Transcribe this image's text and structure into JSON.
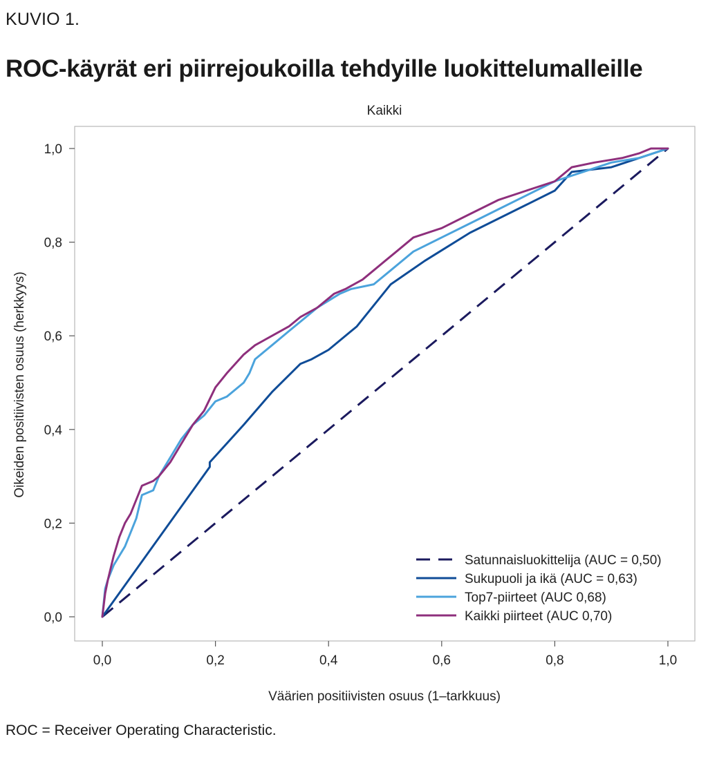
{
  "figure": {
    "label": "KUVIO 1.",
    "title": "ROC-käyrät eri piirrejoukoilla tehdyille luokittelumalleille",
    "footnote": "ROC = Receiver Operating Characteristic."
  },
  "chart_data": {
    "type": "line",
    "title": "Kaikki",
    "xlabel": "Väärien positiivisten osuus (1–tarkkuus)",
    "ylabel": "Oikeiden positiivisten osuus (herkkyys)",
    "xlim": [
      0,
      1
    ],
    "ylim": [
      0,
      1
    ],
    "xticks": [
      "0,0",
      "0,2",
      "0,4",
      "0,6",
      "0,8",
      "1,0"
    ],
    "yticks": [
      "0,0",
      "0,2",
      "0,4",
      "0,6",
      "0,8",
      "1,0"
    ],
    "grid": false,
    "legend_position": "bottom-right",
    "series": [
      {
        "name": "Satunnaisluokittelija (AUC = 0,50)",
        "color": "#1b1a5e",
        "style": "dashed",
        "x": [
          0,
          1
        ],
        "y": [
          0,
          1
        ]
      },
      {
        "name": "Sukupuoli ja ikä (AUC = 0,63)",
        "color": "#0f4c97",
        "style": "solid",
        "x": [
          0,
          0.19,
          0.19,
          0.25,
          0.3,
          0.35,
          0.37,
          0.4,
          0.45,
          0.51,
          0.57,
          0.65,
          0.75,
          0.8,
          0.83,
          0.9,
          1.0
        ],
        "y": [
          0,
          0.32,
          0.33,
          0.41,
          0.48,
          0.54,
          0.55,
          0.57,
          0.62,
          0.71,
          0.76,
          0.82,
          0.88,
          0.91,
          0.95,
          0.96,
          1.0
        ]
      },
      {
        "name": "Top7-piirteet (AUC 0,68)",
        "color": "#4ba3dc",
        "style": "solid",
        "x": [
          0,
          0.005,
          0.01,
          0.02,
          0.03,
          0.04,
          0.05,
          0.06,
          0.07,
          0.09,
          0.1,
          0.12,
          0.14,
          0.16,
          0.18,
          0.2,
          0.22,
          0.25,
          0.26,
          0.27,
          0.3,
          0.33,
          0.36,
          0.38,
          0.42,
          0.44,
          0.48,
          0.51,
          0.55,
          0.6,
          0.65,
          0.7,
          0.75,
          0.8,
          0.85,
          0.9,
          0.95,
          1.0
        ],
        "y": [
          0,
          0.06,
          0.08,
          0.11,
          0.13,
          0.15,
          0.18,
          0.21,
          0.26,
          0.27,
          0.3,
          0.34,
          0.38,
          0.41,
          0.43,
          0.46,
          0.47,
          0.5,
          0.52,
          0.55,
          0.58,
          0.61,
          0.64,
          0.66,
          0.69,
          0.7,
          0.71,
          0.74,
          0.78,
          0.81,
          0.84,
          0.87,
          0.9,
          0.93,
          0.95,
          0.97,
          0.98,
          1.0
        ]
      },
      {
        "name": "Kaikki piirteet (AUC 0,70)",
        "color": "#8e2f7c",
        "style": "solid",
        "x": [
          0,
          0.005,
          0.01,
          0.02,
          0.03,
          0.04,
          0.05,
          0.06,
          0.07,
          0.09,
          0.1,
          0.12,
          0.14,
          0.16,
          0.18,
          0.2,
          0.22,
          0.25,
          0.27,
          0.3,
          0.33,
          0.35,
          0.38,
          0.41,
          0.43,
          0.46,
          0.48,
          0.5,
          0.52,
          0.55,
          0.6,
          0.65,
          0.7,
          0.75,
          0.8,
          0.83,
          0.87,
          0.92,
          0.95,
          0.97,
          1.0
        ],
        "y": [
          0,
          0.05,
          0.08,
          0.13,
          0.17,
          0.2,
          0.22,
          0.25,
          0.28,
          0.29,
          0.3,
          0.33,
          0.37,
          0.41,
          0.44,
          0.49,
          0.52,
          0.56,
          0.58,
          0.6,
          0.62,
          0.64,
          0.66,
          0.69,
          0.7,
          0.72,
          0.74,
          0.76,
          0.78,
          0.81,
          0.83,
          0.86,
          0.89,
          0.91,
          0.93,
          0.96,
          0.97,
          0.98,
          0.99,
          1.0,
          1.0
        ]
      }
    ]
  }
}
